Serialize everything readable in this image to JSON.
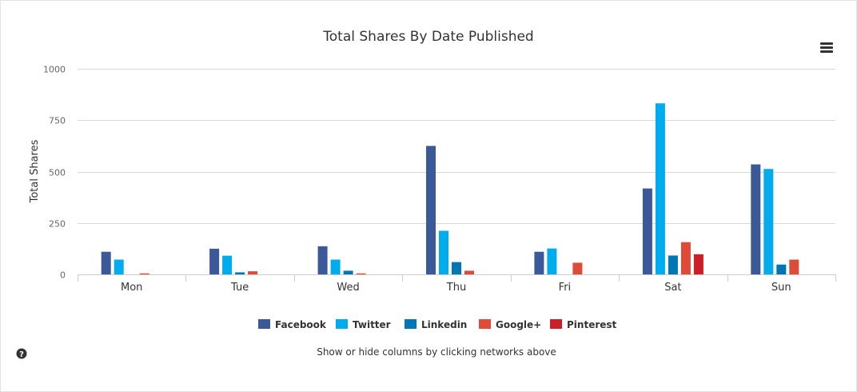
{
  "chart_data": {
    "type": "bar",
    "title": "Total Shares By Date Published",
    "ylabel": "Total Shares",
    "xlabel": "",
    "ylim": [
      0,
      1000
    ],
    "yticks": [
      0,
      250,
      500,
      750,
      1000
    ],
    "categories": [
      "Mon",
      "Tue",
      "Wed",
      "Thu",
      "Fri",
      "Sat",
      "Sun"
    ],
    "series": [
      {
        "name": "Facebook",
        "color": "#3b5998",
        "values": [
          110,
          125,
          137,
          625,
          110,
          418,
          535
        ]
      },
      {
        "name": "Twitter",
        "color": "#00aced",
        "values": [
          72,
          91,
          72,
          212,
          126,
          832,
          513
        ]
      },
      {
        "name": "Linkedin",
        "color": "#0077b5",
        "values": [
          0,
          10,
          18,
          60,
          0,
          92,
          48
        ]
      },
      {
        "name": "Google+",
        "color": "#dd4b39",
        "values": [
          5,
          15,
          5,
          18,
          57,
          157,
          72
        ]
      },
      {
        "name": "Pinterest",
        "color": "#cb2027",
        "values": [
          0,
          0,
          0,
          0,
          0,
          98,
          0
        ]
      }
    ],
    "grid": true,
    "legend_position": "bottom-center",
    "subtitle": "Show or hide columns by clicking networks above"
  },
  "menu_icon": "hamburger-menu-icon",
  "help_icon": "question-circle-icon"
}
